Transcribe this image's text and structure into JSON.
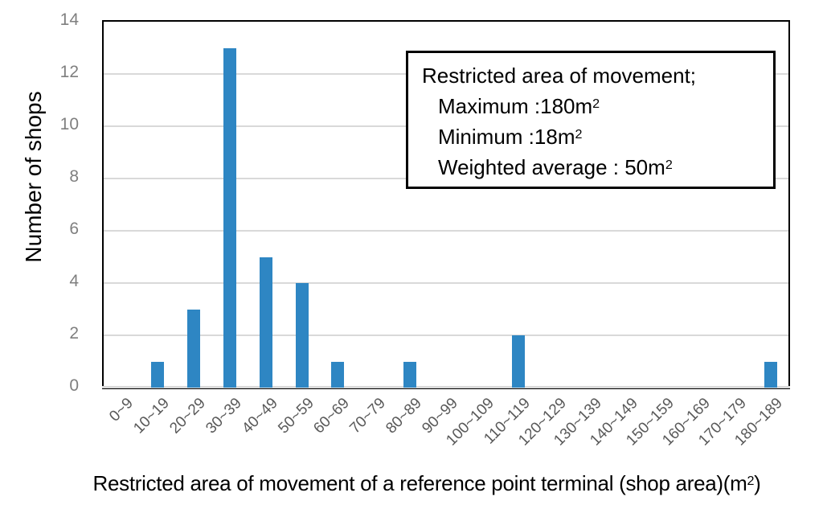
{
  "chart_data": {
    "type": "bar",
    "title": "",
    "categories": [
      "0~9",
      "10~19",
      "20~29",
      "30~39",
      "40~49",
      "50~59",
      "60~69",
      "70~79",
      "80~89",
      "90~99",
      "100~109",
      "110~119",
      "120~129",
      "130~139",
      "140~149",
      "150~159",
      "160~169",
      "170~179",
      "180~189"
    ],
    "values": [
      0,
      1,
      3,
      13,
      5,
      4,
      1,
      0,
      1,
      0,
      0,
      2,
      0,
      0,
      0,
      0,
      0,
      0,
      1
    ],
    "ylabel": "Number of shops",
    "xlabel_main": "Restricted area of movement of a reference point terminal (shop area)(m",
    "xlabel_sup": "2",
    "xlabel_close": ")",
    "ylim": [
      0,
      14
    ],
    "yticks": [
      0,
      2,
      4,
      6,
      8,
      10,
      12,
      14
    ],
    "grid": "horizontal",
    "legend_position": "inside-top-right",
    "bar_color": "#2E86C3",
    "grid_color": "#D9D9D9",
    "axis_line_color": "#D9D9D9",
    "plot_border_color": "#000000",
    "ytick_color": "#7F7F7F",
    "xtick_color": "#595959"
  },
  "annotation_box": {
    "lines": [
      {
        "text": "Restricted area of movement;",
        "sup": ""
      },
      {
        "text": "Maximum :180m",
        "sup": "2"
      },
      {
        "text": "Minimum :18m",
        "sup": "2"
      },
      {
        "text": "Weighted average : 50m",
        "sup": "2"
      }
    ]
  }
}
